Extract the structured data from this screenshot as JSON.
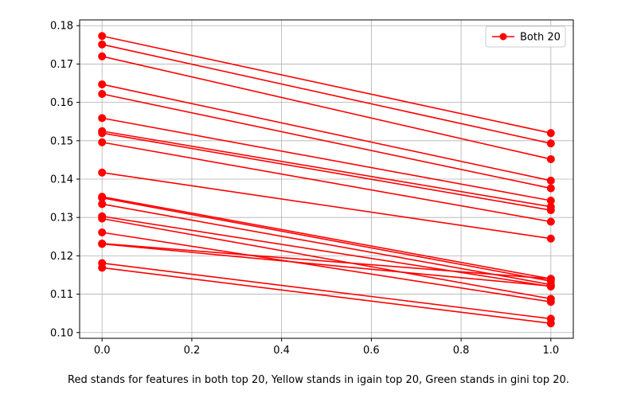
{
  "chart_data": {
    "type": "line",
    "title": "",
    "xlabel": "",
    "ylabel": "",
    "xlim": [
      -0.05,
      1.05
    ],
    "ylim": [
      0.0985,
      0.1815
    ],
    "x_ticks": [
      0.0,
      0.2,
      0.4,
      0.6,
      0.8,
      1.0
    ],
    "x_tick_labels": [
      "0.0",
      "0.2",
      "0.4",
      "0.6",
      "0.8",
      "1.0"
    ],
    "y_ticks": [
      0.1,
      0.11,
      0.12,
      0.13,
      0.14,
      0.15,
      0.16,
      0.17,
      0.18
    ],
    "y_tick_labels": [
      "0.10",
      "0.11",
      "0.12",
      "0.13",
      "0.14",
      "0.15",
      "0.16",
      "0.17",
      "0.18"
    ],
    "grid": true,
    "legend_position": "top-right",
    "legend": [
      "Both 20"
    ],
    "color": "#ff0000",
    "x": [
      0,
      1
    ],
    "series": [
      {
        "name": "Both 20",
        "values": [
          0.1773,
          0.152
        ]
      },
      {
        "name": "",
        "values": [
          0.1751,
          0.1493
        ]
      },
      {
        "name": "",
        "values": [
          0.172,
          0.1452
        ]
      },
      {
        "name": "",
        "values": [
          0.1647,
          0.1396
        ]
      },
      {
        "name": "",
        "values": [
          0.1622,
          0.1376
        ]
      },
      {
        "name": "",
        "values": [
          0.1559,
          0.1344
        ]
      },
      {
        "name": "",
        "values": [
          0.1525,
          0.1328
        ]
      },
      {
        "name": "",
        "values": [
          0.152,
          0.1319
        ]
      },
      {
        "name": "",
        "values": [
          0.1496,
          0.1289
        ]
      },
      {
        "name": "",
        "values": [
          0.1417,
          0.1245
        ]
      },
      {
        "name": "",
        "values": [
          0.1354,
          0.114
        ]
      },
      {
        "name": "",
        "values": [
          0.1351,
          0.1134
        ]
      },
      {
        "name": "",
        "values": [
          0.1335,
          0.1125
        ]
      },
      {
        "name": "",
        "values": [
          0.1303,
          0.112
        ]
      },
      {
        "name": "",
        "values": [
          0.1297,
          0.1088
        ]
      },
      {
        "name": "",
        "values": [
          0.1261,
          0.108
        ]
      },
      {
        "name": "",
        "values": [
          0.1232,
          0.114
        ]
      },
      {
        "name": "",
        "values": [
          0.1231,
          0.1121
        ]
      },
      {
        "name": "",
        "values": [
          0.1181,
          0.1036
        ]
      },
      {
        "name": "",
        "values": [
          0.1169,
          0.1024
        ]
      }
    ]
  },
  "caption": "Red stands for features in both top 20, Yellow stands in igain top 20, Green stands in gini top 20."
}
